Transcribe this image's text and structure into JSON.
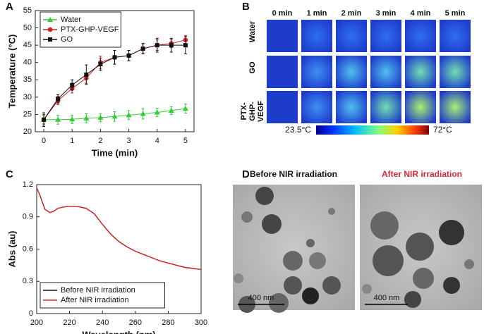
{
  "panels": {
    "a": "A",
    "b": "B",
    "c": "C",
    "d": "D"
  },
  "chart_data": [
    {
      "type": "line",
      "x_label": "Time (min)",
      "y_label": "Temperature (°C)",
      "x": [
        0,
        0.5,
        1,
        1.5,
        2,
        2.5,
        3,
        3.5,
        4,
        4.5,
        5
      ],
      "xlim": [
        -0.3,
        5.3
      ],
      "xticks": [
        0,
        1,
        2,
        3,
        4,
        5
      ],
      "ylim": [
        20,
        55
      ],
      "yticks": [
        20,
        25,
        30,
        35,
        40,
        45,
        50,
        55
      ],
      "legend": "upper left",
      "series": [
        {
          "name": "Water",
          "color": "#33cc33",
          "marker": "triangle",
          "values": [
            23.5,
            23.5,
            23.6,
            23.9,
            24.1,
            24.4,
            24.8,
            25.2,
            25.6,
            26.1,
            26.7
          ],
          "errors": [
            1.2,
            1.3,
            1.2,
            1.3,
            1.2,
            1.4,
            1.3,
            1.5,
            1.2,
            1.1,
            1.3
          ]
        },
        {
          "name": "PTX-GHP-VEGF",
          "color": "#cc2222",
          "marker": "circle",
          "values": [
            23.5,
            29,
            32.5,
            35.5,
            40,
            41.5,
            42,
            44,
            45,
            45.5,
            46.5
          ],
          "errors": [
            1.5,
            1.2,
            1.3,
            1.5,
            1.8,
            2,
            1.5,
            1.4,
            1.5,
            1.2,
            1.3
          ]
        },
        {
          "name": "GO",
          "color": "#111111",
          "marker": "square",
          "values": [
            23.5,
            29.5,
            33.5,
            36.5,
            39.5,
            41.5,
            42,
            44,
            45,
            45,
            45
          ],
          "errors": [
            2,
            1.2,
            1.5,
            2.8,
            1.8,
            2,
            1.5,
            1.5,
            2,
            2,
            2.5
          ]
        }
      ]
    },
    {
      "type": "line",
      "x_label": "Wavelength (nm)",
      "y_label": "Abs (au)",
      "x": [
        200,
        202,
        205,
        208,
        210,
        213,
        216,
        220,
        225,
        230,
        235,
        240,
        245,
        250,
        255,
        260,
        265,
        270,
        275,
        280,
        285,
        290,
        295,
        300
      ],
      "xlim": [
        200,
        300
      ],
      "xticks": [
        200,
        220,
        240,
        260,
        280,
        300
      ],
      "ylim": [
        0,
        1.2
      ],
      "yticks": [
        0,
        0.3,
        0.6,
        0.9,
        1.2
      ],
      "legend": "lower left",
      "series": [
        {
          "name": "Before NIR irradiation",
          "color": "#111111",
          "values": [
            1.17,
            1.1,
            0.97,
            0.94,
            0.95,
            0.98,
            0.99,
            1.0,
            0.995,
            0.98,
            0.93,
            0.83,
            0.74,
            0.67,
            0.62,
            0.58,
            0.55,
            0.52,
            0.49,
            0.47,
            0.45,
            0.43,
            0.42,
            0.41
          ]
        },
        {
          "name": "After NIR irradiation",
          "color": "#dd2222",
          "values": [
            1.17,
            1.1,
            0.97,
            0.94,
            0.95,
            0.98,
            0.99,
            1.0,
            0.995,
            0.98,
            0.93,
            0.83,
            0.74,
            0.67,
            0.62,
            0.58,
            0.55,
            0.52,
            0.49,
            0.47,
            0.45,
            0.43,
            0.42,
            0.41
          ]
        }
      ]
    }
  ],
  "heatmap": {
    "columns": [
      "0 min",
      "1 min",
      "2 min",
      "3 min",
      "4 min",
      "5 min"
    ],
    "rows": [
      "Water",
      "GO",
      "PTX-GHP-VEGF"
    ],
    "colorbar": {
      "min_label": "23.5°C",
      "max_label": "72°C"
    }
  },
  "micrographs": {
    "before": "Before NIR irradiation",
    "after": "After NIR irradiation",
    "scale_before": "400 nm",
    "scale_after": "400 nm"
  }
}
